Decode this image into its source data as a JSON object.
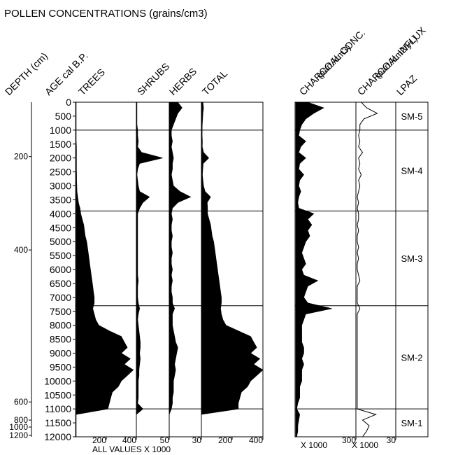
{
  "chart_data": {
    "type": "area",
    "title": "POLLEN CONCENTRATIONS (grains/cm3)",
    "x_axis_note": "ALL VALUES X 1000",
    "depth_axis": {
      "label": "DEPTH (cm)",
      "ticks": [
        200,
        400,
        600,
        800,
        1000,
        1200
      ],
      "age_at_tick": [
        1950,
        5300,
        10750,
        11400,
        11650,
        11950
      ]
    },
    "age_axis": {
      "label": "AGE cal B.P.",
      "ticks": [
        0,
        500,
        1000,
        1500,
        2000,
        2500,
        3000,
        3500,
        4000,
        4500,
        5000,
        5500,
        6000,
        6500,
        7000,
        7500,
        8000,
        8500,
        9000,
        9500,
        10000,
        10500,
        11000,
        11500,
        12000
      ],
      "ylim": [
        0,
        12000
      ]
    },
    "age_samples": [
      0,
      200,
      400,
      600,
      800,
      1000,
      1200,
      1400,
      1600,
      1800,
      2000,
      2200,
      2400,
      2600,
      2800,
      3000,
      3200,
      3400,
      3600,
      3800,
      4000,
      4200,
      4400,
      4600,
      4800,
      5000,
      5200,
      5400,
      5600,
      5800,
      6000,
      6200,
      6400,
      6600,
      6800,
      7000,
      7200,
      7400,
      7600,
      7800,
      8000,
      8200,
      8400,
      8600,
      8800,
      9000,
      9200,
      9400,
      9600,
      9800,
      10000,
      10200,
      10400,
      10600,
      10800,
      11000,
      11200,
      11400,
      11600,
      11800,
      12000
    ],
    "series": [
      {
        "name": "TREES",
        "xlim": [
          0,
          400
        ],
        "tick_labels": [
          "200",
          "400"
        ],
        "tick_values": [
          200,
          400
        ],
        "values": [
          0,
          0,
          0,
          0,
          0,
          0,
          0,
          0,
          2,
          2,
          2,
          2,
          2,
          3,
          3,
          4,
          5,
          10,
          15,
          25,
          30,
          40,
          50,
          55,
          60,
          70,
          75,
          80,
          85,
          90,
          95,
          100,
          105,
          110,
          115,
          120,
          120,
          110,
          120,
          130,
          150,
          220,
          300,
          320,
          340,
          300,
          360,
          320,
          380,
          340,
          300,
          280,
          240,
          230,
          220,
          210,
          0,
          0,
          0,
          0,
          0
        ]
      },
      {
        "name": "SHRUBS",
        "xlim": [
          0,
          50
        ],
        "tick_labels": [
          "50"
        ],
        "tick_values": [
          50
        ],
        "values": [
          1,
          1,
          1,
          1,
          1,
          2,
          2,
          3,
          2,
          8,
          40,
          5,
          2,
          1,
          2,
          3,
          5,
          20,
          10,
          5,
          2,
          2,
          2,
          2,
          2,
          2,
          2,
          2,
          2,
          2,
          2,
          2,
          3,
          2,
          2,
          2,
          3,
          5,
          3,
          2,
          3,
          4,
          5,
          6,
          6,
          5,
          6,
          5,
          4,
          4,
          3,
          3,
          3,
          3,
          2,
          10,
          0,
          0,
          0,
          0,
          0
        ]
      },
      {
        "name": "HERBS",
        "xlim": [
          0,
          30
        ],
        "tick_labels": [
          "30"
        ],
        "tick_values": [
          30
        ],
        "values": [
          8,
          12,
          8,
          6,
          4,
          2,
          2,
          3,
          2,
          3,
          4,
          3,
          3,
          2,
          3,
          4,
          10,
          20,
          8,
          3,
          2,
          3,
          2,
          2,
          3,
          2,
          2,
          3,
          2,
          2,
          3,
          2,
          3,
          2,
          2,
          3,
          3,
          5,
          3,
          3,
          3,
          4,
          5,
          6,
          8,
          7,
          6,
          5,
          6,
          5,
          4,
          4,
          4,
          3,
          3,
          2,
          0,
          0,
          0,
          0,
          0
        ]
      },
      {
        "name": "TOTAL",
        "xlim": [
          0,
          400
        ],
        "tick_labels": [
          "200",
          "400"
        ],
        "tick_values": [
          200,
          400
        ],
        "values": [
          10,
          14,
          10,
          8,
          6,
          5,
          5,
          7,
          6,
          14,
          48,
          12,
          9,
          7,
          10,
          14,
          24,
          60,
          38,
          40,
          40,
          50,
          60,
          65,
          70,
          80,
          85,
          90,
          95,
          100,
          105,
          110,
          115,
          120,
          125,
          130,
          130,
          125,
          130,
          140,
          160,
          240,
          320,
          340,
          360,
          320,
          380,
          340,
          400,
          360,
          320,
          300,
          260,
          250,
          240,
          240,
          0,
          0,
          0,
          0,
          0
        ]
      },
      {
        "name": "CHARCOAL CONC. (part./cm3)",
        "xlim": [
          0,
          300
        ],
        "tick_labels": [
          "300"
        ],
        "tick_values": [
          300
        ],
        "values": [
          60,
          140,
          90,
          50,
          30,
          20,
          15,
          50,
          25,
          15,
          50,
          20,
          15,
          40,
          20,
          15,
          25,
          15,
          10,
          15,
          90,
          60,
          80,
          60,
          70,
          50,
          40,
          30,
          40,
          50,
          30,
          40,
          110,
          60,
          50,
          40,
          60,
          180,
          50,
          40,
          30,
          30,
          30,
          30,
          40,
          40,
          30,
          40,
          30,
          30,
          30,
          20,
          20,
          20,
          10,
          5,
          20,
          15,
          10,
          10,
          5
        ]
      },
      {
        "name": "CHARCOAL INFLUX (part./cm2/yr.)",
        "xlim": [
          0,
          30
        ],
        "tick_labels": [
          "30"
        ],
        "tick_values": [
          30
        ],
        "style": "line",
        "values": [
          4,
          8,
          16,
          6,
          3,
          3,
          2,
          3,
          2,
          5,
          2,
          3,
          2,
          4,
          2,
          3,
          2,
          1,
          2,
          1,
          2,
          2,
          1,
          2,
          1,
          1,
          2,
          1,
          2,
          1,
          1,
          2,
          3,
          1,
          1,
          1,
          1,
          3,
          1,
          1,
          1,
          1,
          1,
          1,
          1,
          1,
          1,
          1,
          1,
          1,
          1,
          1,
          1,
          1,
          1,
          1,
          15,
          5,
          10,
          8,
          5
        ]
      }
    ],
    "charcoal_units": [
      "X 1000",
      "X 1000"
    ],
    "zone_column": {
      "label": "LPAZ",
      "zones": [
        {
          "name": "SM-5",
          "top": 0,
          "bottom": 1000
        },
        {
          "name": "SM-4",
          "top": 1000,
          "bottom": 3900
        },
        {
          "name": "SM-3",
          "top": 3900,
          "bottom": 7300
        },
        {
          "name": "SM-2",
          "top": 7300,
          "bottom": 11000
        },
        {
          "name": "SM-1",
          "top": 11000,
          "bottom": 12000
        }
      ]
    }
  }
}
